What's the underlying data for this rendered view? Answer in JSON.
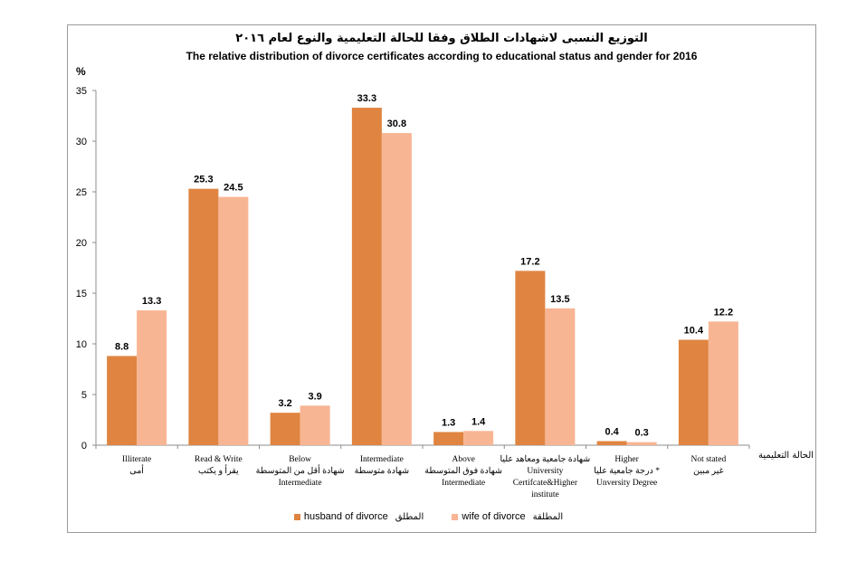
{
  "chart_data": {
    "type": "bar",
    "title": "التوزيع النسبى لاشهادات الطلاق وفقا للحالة التعليمية والنوع لعام ٢٠١٦",
    "subtitle": "The relative distribution of divorce certificates according to educational status and gender for 2016",
    "ylabel": "%",
    "xlabel": "الحالة التعليمية",
    "ylim": [
      0,
      35
    ],
    "yticks": [
      0,
      5,
      10,
      15,
      20,
      25,
      30,
      35
    ],
    "grid": false,
    "legend_position": "bottom",
    "categories": [
      [
        "Illiterate",
        "أمى"
      ],
      [
        "Read & Write",
        "يقرأ و يكتب"
      ],
      [
        "Below",
        "شهادة أقل من المتوسطة",
        "Intermediate"
      ],
      [
        "Intermediate",
        "شهادة متوسطة"
      ],
      [
        "Above",
        "شهادة فوق المتوسطة",
        "Intermediate"
      ],
      [
        "شهادة جامعية ومعاهد عليا",
        "University",
        "Certifcate&Higher",
        "institute"
      ],
      [
        "Higher",
        "درجة جامعية عليا *",
        "Unversity Degree"
      ],
      [
        "Not stated",
        "غير مبين"
      ]
    ],
    "series": [
      {
        "name": "husband of divorce",
        "name_ar": "المطلق",
        "color": "#df8541",
        "values": [
          8.8,
          25.3,
          3.2,
          33.3,
          1.3,
          17.2,
          0.4,
          10.4
        ]
      },
      {
        "name": "wife of divorce",
        "name_ar": "المطلقة",
        "color": "#f8b593",
        "values": [
          13.3,
          24.5,
          3.9,
          30.8,
          1.4,
          13.5,
          0.3,
          12.2
        ]
      }
    ]
  }
}
